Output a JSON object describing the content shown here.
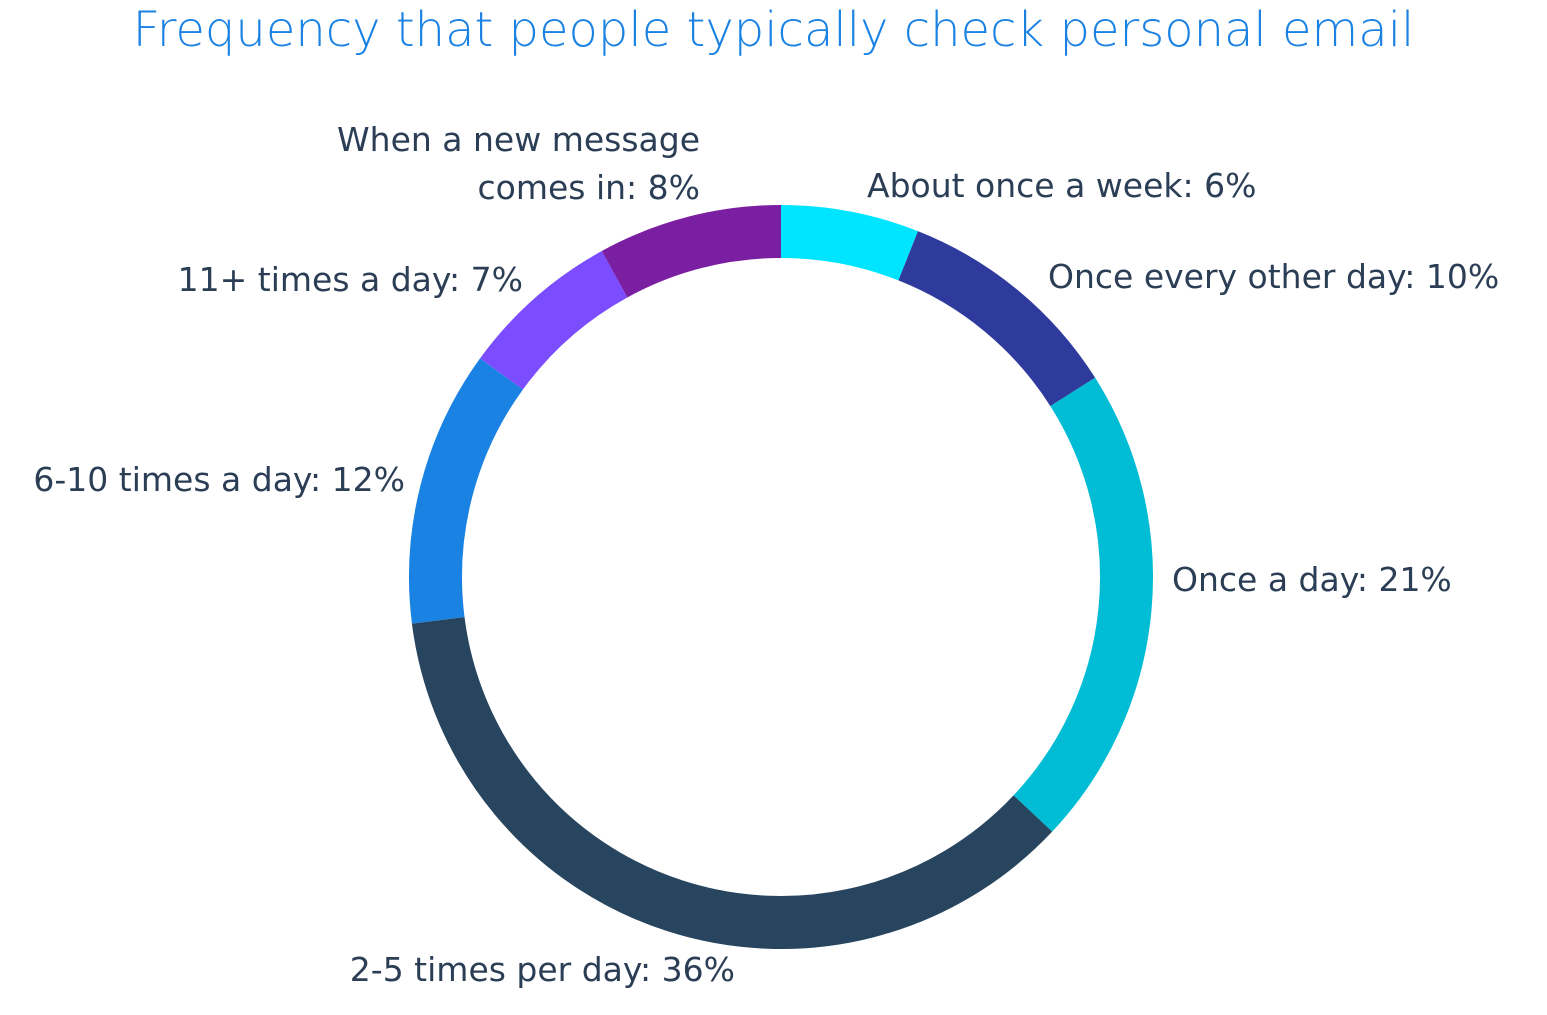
{
  "chart_data": {
    "type": "donut",
    "title": "Frequency that people typically check personal email",
    "values": [
      6,
      10,
      21,
      36,
      12,
      7,
      8
    ],
    "value_labels": [
      "About once a week: 6%",
      "Once every other day: 10%",
      "Once a day: 21%",
      "2-5 times per day: 36%",
      "6-10 times a day: 12%",
      "11+ times a day: 7%",
      "When a new message comes in: 8%"
    ],
    "colors": [
      "#00e5ff",
      "#2e3a9c",
      "#00bcd4",
      "#28455f",
      "#1a82e2",
      "#7c4dff",
      "#7b1fa2"
    ]
  }
}
